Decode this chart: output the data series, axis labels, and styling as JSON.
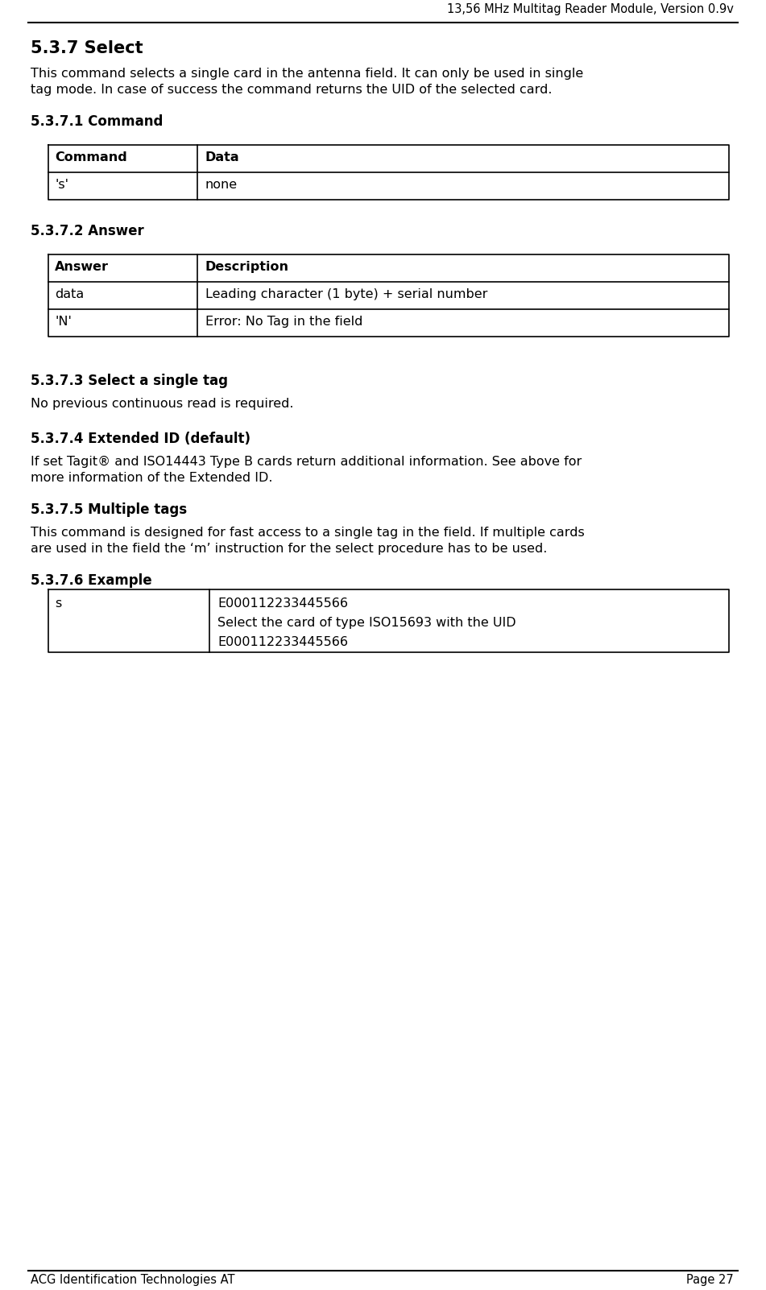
{
  "header_text": "13,56 MHz Multitag Reader Module, Version 0.9v",
  "footer_left": "ACG Identification Technologies AT",
  "footer_right": "Page 27",
  "section_title": "5.3.7 Select",
  "section_body": "This command selects a single card in the antenna field. It can only be used in single\ntag mode. In case of success the command returns the UID of the selected card.",
  "sub1_title": "5.3.7.1 Command",
  "table1_headers": [
    "Command",
    "Data"
  ],
  "table1_rows": [
    [
      "'s'",
      "none"
    ]
  ],
  "sub2_title": "5.3.7.2 Answer",
  "table2_headers": [
    "Answer",
    "Description"
  ],
  "table2_rows": [
    [
      "data",
      "Leading character (1 byte) + serial number"
    ],
    [
      "'N'",
      "Error: No Tag in the field"
    ]
  ],
  "sub3_title": "5.3.7.3 Select a single tag",
  "sub3_body": "No previous continuous read is required.",
  "sub4_title": "5.3.7.4 Extended ID (default)",
  "sub4_body": "If set Tagit® and ISO14443 Type B cards return additional information. See above for\nmore information of the Extended ID.",
  "sub5_title": "5.3.7.5 Multiple tags",
  "sub5_body": "This command is designed for fast access to a single tag in the field. If multiple cards\nare used in the field the ‘m’ instruction for the select procedure has to be used.",
  "sub6_title": "5.3.7.6 Example",
  "table3_rows": [
    [
      "s",
      "E000112233445566\nSelect the card of type ISO15693 with the UID\nE000112233445566"
    ]
  ],
  "bg_color": "#ffffff",
  "text_color": "#000000"
}
